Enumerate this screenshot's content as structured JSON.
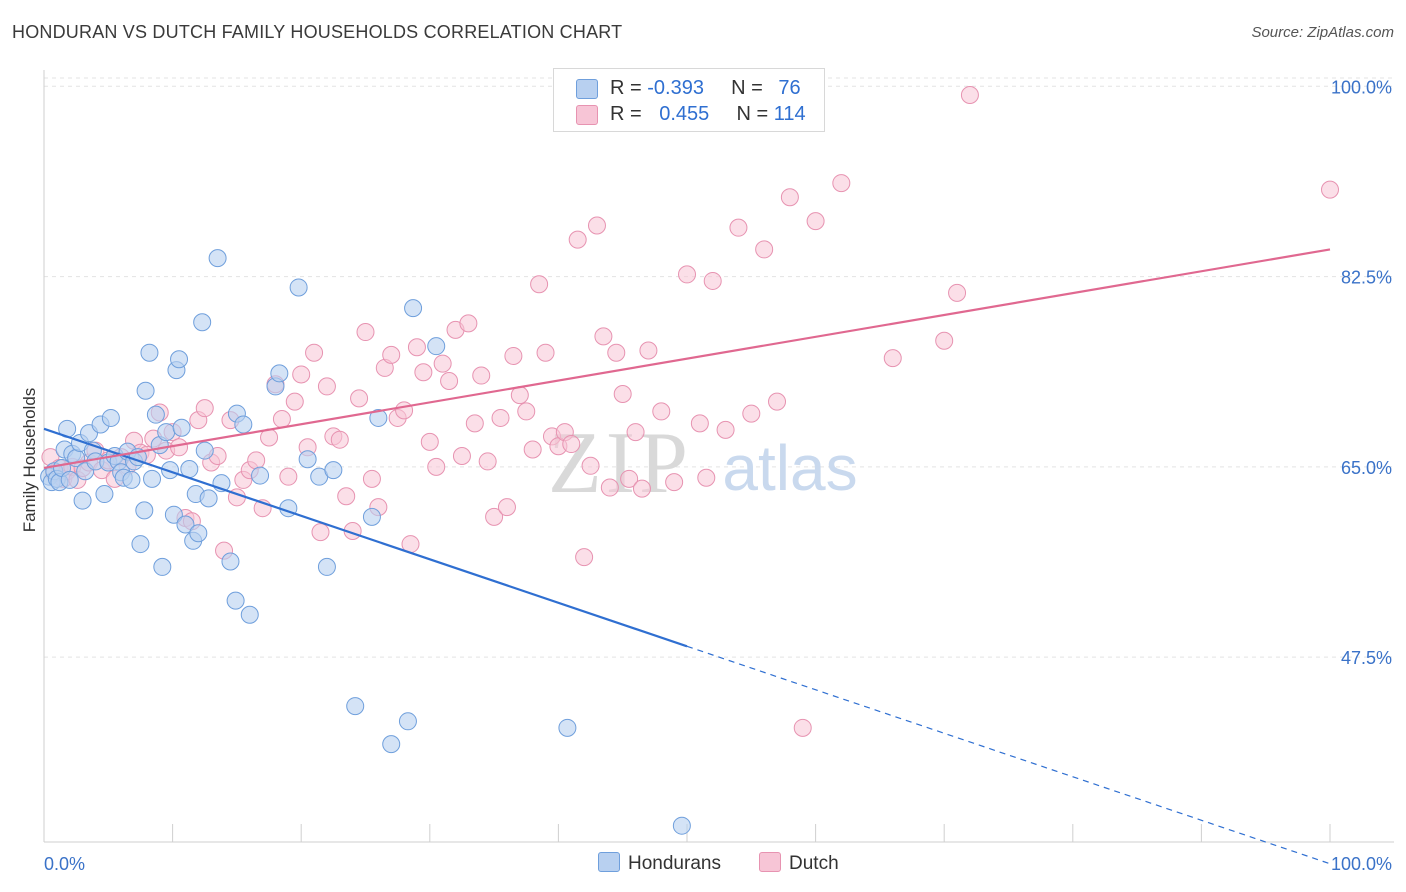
{
  "header": {
    "title": "HONDURAN VS DUTCH FAMILY HOUSEHOLDS CORRELATION CHART",
    "source": "Source: ZipAtlas.com"
  },
  "legend": {
    "hondurans": {
      "r_label": "R = ",
      "r_value": "-0.393",
      "n_label": "N = ",
      "n_value": "76"
    },
    "dutch": {
      "r_label": "R = ",
      "r_value": "0.455",
      "n_label": "N = ",
      "n_value": "114"
    }
  },
  "bottom_legend": {
    "hondurans": "Hondurans",
    "dutch": "Dutch"
  },
  "watermark": {
    "zip": "ZIP",
    "atlas": "atlas"
  },
  "colors": {
    "hondurans_fill": "#b8d0f0",
    "hondurans_stroke": "#6f9fdc",
    "hondurans_line": "#2f6fd1",
    "dutch_fill": "#f7c5d6",
    "dutch_stroke": "#e793b1",
    "dutch_line": "#e06890",
    "tick_label": "#3a72c8",
    "grid": "#e3e3e3"
  },
  "chart_data": {
    "type": "scatter",
    "title": "HONDURAN VS DUTCH FAMILY HOUSEHOLDS CORRELATION CHART",
    "xlabel": "",
    "ylabel": "Family Households",
    "xlim": [
      0,
      100
    ],
    "ylim": [
      30.5,
      101.5
    ],
    "x_tick_labels": [
      "0.0%",
      "100.0%"
    ],
    "y_ticks": [
      47.5,
      65.0,
      82.5,
      100.0
    ],
    "y_tick_labels": [
      "47.5%",
      "65.0%",
      "82.5%",
      "100.0%"
    ],
    "grid": true,
    "legend_position": "top-center",
    "series": [
      {
        "name": "Hondurans",
        "points": [
          [
            0.4,
            64.1
          ],
          [
            0.6,
            63.6
          ],
          [
            0.8,
            64.6
          ],
          [
            1.0,
            63.9
          ],
          [
            1.2,
            63.6
          ],
          [
            1.4,
            64.9
          ],
          [
            1.6,
            66.6
          ],
          [
            1.8,
            68.5
          ],
          [
            2.0,
            63.8
          ],
          [
            2.2,
            66.2
          ],
          [
            2.5,
            65.8
          ],
          [
            2.8,
            67.2
          ],
          [
            3.0,
            61.9
          ],
          [
            3.2,
            64.6
          ],
          [
            3.5,
            68.1
          ],
          [
            3.8,
            66.5
          ],
          [
            4.0,
            65.5
          ],
          [
            4.4,
            68.9
          ],
          [
            4.7,
            62.5
          ],
          [
            5.0,
            65.4
          ],
          [
            5.2,
            69.5
          ],
          [
            5.5,
            66.0
          ],
          [
            5.8,
            65.5
          ],
          [
            6.0,
            64.5
          ],
          [
            6.2,
            64.0
          ],
          [
            6.5,
            66.4
          ],
          [
            6.8,
            63.8
          ],
          [
            7.0,
            65.5
          ],
          [
            7.3,
            65.9
          ],
          [
            7.5,
            57.9
          ],
          [
            7.8,
            61.0
          ],
          [
            7.9,
            72.0
          ],
          [
            8.2,
            75.5
          ],
          [
            8.4,
            63.9
          ],
          [
            8.7,
            69.8
          ],
          [
            9.0,
            67.0
          ],
          [
            9.2,
            55.8
          ],
          [
            9.5,
            68.2
          ],
          [
            9.8,
            64.7
          ],
          [
            10.1,
            60.6
          ],
          [
            10.3,
            73.9
          ],
          [
            10.5,
            74.9
          ],
          [
            10.7,
            68.6
          ],
          [
            11.0,
            59.7
          ],
          [
            11.3,
            64.8
          ],
          [
            11.6,
            58.2
          ],
          [
            11.8,
            62.5
          ],
          [
            12.0,
            58.9
          ],
          [
            12.3,
            78.3
          ],
          [
            12.5,
            66.5
          ],
          [
            12.8,
            62.1
          ],
          [
            13.5,
            84.2
          ],
          [
            13.8,
            63.5
          ],
          [
            14.5,
            56.3
          ],
          [
            14.9,
            52.7
          ],
          [
            15.0,
            69.9
          ],
          [
            15.5,
            68.9
          ],
          [
            16.0,
            51.4
          ],
          [
            16.8,
            64.2
          ],
          [
            18.0,
            72.4
          ],
          [
            18.3,
            73.6
          ],
          [
            19.0,
            61.2
          ],
          [
            19.8,
            81.5
          ],
          [
            20.5,
            65.7
          ],
          [
            21.4,
            64.1
          ],
          [
            22.0,
            55.8
          ],
          [
            22.5,
            64.7
          ],
          [
            24.2,
            43.0
          ],
          [
            25.5,
            60.4
          ],
          [
            26.0,
            69.5
          ],
          [
            27.0,
            39.5
          ],
          [
            28.3,
            41.6
          ],
          [
            28.7,
            79.6
          ],
          [
            30.5,
            76.1
          ],
          [
            40.7,
            41.0
          ],
          [
            49.6,
            32.0
          ]
        ]
      },
      {
        "name": "Dutch",
        "points": [
          [
            0.5,
            65.9
          ],
          [
            0.8,
            64.4
          ],
          [
            1.2,
            64.9
          ],
          [
            1.5,
            63.9
          ],
          [
            1.8,
            64.6
          ],
          [
            2.2,
            65.0
          ],
          [
            2.6,
            63.8
          ],
          [
            3.0,
            64.9
          ],
          [
            3.5,
            65.4
          ],
          [
            4.0,
            66.5
          ],
          [
            4.5,
            64.7
          ],
          [
            5.0,
            65.6
          ],
          [
            5.5,
            63.9
          ],
          [
            6.0,
            65.9
          ],
          [
            6.5,
            65.1
          ],
          [
            7.0,
            67.4
          ],
          [
            7.5,
            66.3
          ],
          [
            8.0,
            66.1
          ],
          [
            8.5,
            67.6
          ],
          [
            9.0,
            70.0
          ],
          [
            9.5,
            66.5
          ],
          [
            10.0,
            68.2
          ],
          [
            10.5,
            66.8
          ],
          [
            11.0,
            60.3
          ],
          [
            11.5,
            60.0
          ],
          [
            12.0,
            69.3
          ],
          [
            12.5,
            70.4
          ],
          [
            13.0,
            65.4
          ],
          [
            13.5,
            66.0
          ],
          [
            14.0,
            57.3
          ],
          [
            14.5,
            69.3
          ],
          [
            15.0,
            62.2
          ],
          [
            15.5,
            63.8
          ],
          [
            16.0,
            64.7
          ],
          [
            16.5,
            65.6
          ],
          [
            17.0,
            61.2
          ],
          [
            17.5,
            67.7
          ],
          [
            18.0,
            72.6
          ],
          [
            18.5,
            69.4
          ],
          [
            19.0,
            64.1
          ],
          [
            19.5,
            71.0
          ],
          [
            20.0,
            73.5
          ],
          [
            20.5,
            66.8
          ],
          [
            21.0,
            75.5
          ],
          [
            21.5,
            59.0
          ],
          [
            22.0,
            72.4
          ],
          [
            22.5,
            67.8
          ],
          [
            23.0,
            67.5
          ],
          [
            23.5,
            62.3
          ],
          [
            24.0,
            59.1
          ],
          [
            24.5,
            71.3
          ],
          [
            25.0,
            77.4
          ],
          [
            25.5,
            63.9
          ],
          [
            26.0,
            61.3
          ],
          [
            26.5,
            74.1
          ],
          [
            27.0,
            75.3
          ],
          [
            27.5,
            69.5
          ],
          [
            28.0,
            70.2
          ],
          [
            28.5,
            57.9
          ],
          [
            29.0,
            76.0
          ],
          [
            29.5,
            73.7
          ],
          [
            30.0,
            67.3
          ],
          [
            30.5,
            65.0
          ],
          [
            31.0,
            74.5
          ],
          [
            31.5,
            72.9
          ],
          [
            32.0,
            77.6
          ],
          [
            32.5,
            66.0
          ],
          [
            33.0,
            78.2
          ],
          [
            33.5,
            69.0
          ],
          [
            34.0,
            73.4
          ],
          [
            34.5,
            65.5
          ],
          [
            35.0,
            60.4
          ],
          [
            35.5,
            69.5
          ],
          [
            36.0,
            61.3
          ],
          [
            36.5,
            75.2
          ],
          [
            37.0,
            71.6
          ],
          [
            37.5,
            70.1
          ],
          [
            38.0,
            66.6
          ],
          [
            38.5,
            81.8
          ],
          [
            39.0,
            75.5
          ],
          [
            39.5,
            67.8
          ],
          [
            40.0,
            66.9
          ],
          [
            40.5,
            68.2
          ],
          [
            41.0,
            67.1
          ],
          [
            41.5,
            85.9
          ],
          [
            42.0,
            56.7
          ],
          [
            42.5,
            65.1
          ],
          [
            43.0,
            87.2
          ],
          [
            43.5,
            77.0
          ],
          [
            44.0,
            63.1
          ],
          [
            44.5,
            75.5
          ],
          [
            45.0,
            71.7
          ],
          [
            45.5,
            63.9
          ],
          [
            46.0,
            68.2
          ],
          [
            46.5,
            63.0
          ],
          [
            47.0,
            75.7
          ],
          [
            48.0,
            70.1
          ],
          [
            49.0,
            63.6
          ],
          [
            50.0,
            82.7
          ],
          [
            51.0,
            69.0
          ],
          [
            51.5,
            64.0
          ],
          [
            52.0,
            82.1
          ],
          [
            53.0,
            68.4
          ],
          [
            54.0,
            87.0
          ],
          [
            55.0,
            69.9
          ],
          [
            56.0,
            85.0
          ],
          [
            57.0,
            71.0
          ],
          [
            58.0,
            89.8
          ],
          [
            59.0,
            41.0
          ],
          [
            60.0,
            87.6
          ],
          [
            62.0,
            91.1
          ],
          [
            66.0,
            75.0
          ],
          [
            70.0,
            76.6
          ],
          [
            71.0,
            81.0
          ],
          [
            72.0,
            99.2
          ],
          [
            100.0,
            90.5
          ]
        ]
      }
    ],
    "trend_lines": [
      {
        "name": "Hondurans",
        "from": [
          0,
          68.5
        ],
        "to_solid": [
          50,
          48.5
        ],
        "to_dashed": [
          100,
          28.5
        ]
      },
      {
        "name": "Dutch",
        "from": [
          0,
          64.9
        ],
        "to": [
          100,
          85.0
        ]
      }
    ]
  }
}
